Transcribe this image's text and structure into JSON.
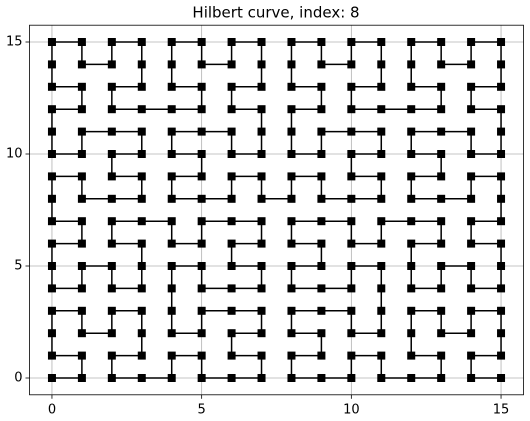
{
  "chart_data": {
    "type": "line",
    "title": "Hilbert curve, index: 8",
    "x": [
      0,
      1,
      1,
      0,
      0,
      0,
      1,
      1,
      2,
      2,
      3,
      3,
      3,
      2,
      2,
      3,
      4,
      4,
      5,
      5,
      6,
      7,
      7,
      6,
      6,
      7,
      7,
      6,
      5,
      5,
      4,
      4,
      4,
      4,
      5,
      5,
      6,
      7,
      7,
      6,
      6,
      7,
      7,
      6,
      5,
      5,
      4,
      4,
      3,
      2,
      2,
      3,
      3,
      3,
      2,
      2,
      1,
      1,
      0,
      0,
      0,
      1,
      1,
      0,
      0,
      0,
      1,
      1,
      2,
      3,
      3,
      2,
      2,
      3,
      3,
      2,
      1,
      1,
      0,
      0,
      0,
      1,
      1,
      0,
      0,
      0,
      1,
      1,
      2,
      2,
      3,
      3,
      3,
      2,
      2,
      3,
      4,
      5,
      5,
      4,
      4,
      4,
      5,
      5,
      6,
      6,
      7,
      7,
      7,
      6,
      6,
      7,
      7,
      7,
      6,
      6,
      5,
      4,
      4,
      5,
      5,
      4,
      4,
      5,
      6,
      6,
      7,
      7,
      8,
      8,
      9,
      9,
      10,
      11,
      11,
      10,
      10,
      11,
      11,
      10,
      9,
      9,
      8,
      8,
      8,
      9,
      9,
      8,
      8,
      8,
      9,
      9,
      10,
      10,
      11,
      11,
      11,
      10,
      10,
      11,
      12,
      13,
      13,
      12,
      12,
      12,
      13,
      13,
      14,
      14,
      15,
      15,
      15,
      14,
      14,
      15,
      15,
      15,
      14,
      14,
      13,
      12,
      12,
      13,
      13,
      12,
      12,
      13,
      14,
      14,
      15,
      15,
      15,
      14,
      14,
      15,
      15,
      15,
      14,
      14,
      13,
      13,
      12,
      12,
      12,
      13,
      13,
      12,
      11,
      11,
      10,
      10,
      9,
      8,
      8,
      9,
      9,
      8,
      8,
      9,
      10,
      10,
      11,
      11,
      11,
      11,
      10,
      10,
      9,
      8,
      8,
      9,
      9,
      8,
      8,
      9,
      10,
      10,
      11,
      11,
      12,
      13,
      13,
      12,
      12,
      12,
      13,
      13,
      14,
      14,
      15,
      15,
      15,
      14,
      14,
      15
    ],
    "y": [
      0,
      0,
      1,
      1,
      2,
      3,
      3,
      2,
      2,
      3,
      3,
      2,
      1,
      1,
      0,
      0,
      0,
      1,
      1,
      0,
      0,
      0,
      1,
      1,
      2,
      2,
      3,
      3,
      3,
      2,
      2,
      3,
      4,
      5,
      5,
      4,
      4,
      4,
      5,
      5,
      6,
      6,
      7,
      7,
      7,
      6,
      6,
      7,
      7,
      7,
      6,
      6,
      5,
      4,
      4,
      5,
      5,
      4,
      4,
      5,
      6,
      6,
      7,
      7,
      8,
      9,
      9,
      8,
      8,
      8,
      9,
      9,
      10,
      10,
      11,
      11,
      11,
      10,
      10,
      11,
      12,
      12,
      13,
      13,
      14,
      15,
      15,
      14,
      14,
      15,
      15,
      14,
      13,
      13,
      12,
      12,
      12,
      12,
      13,
      13,
      14,
      15,
      15,
      14,
      14,
      15,
      15,
      14,
      13,
      13,
      12,
      12,
      11,
      10,
      10,
      11,
      11,
      11,
      10,
      10,
      9,
      9,
      8,
      8,
      8,
      9,
      9,
      8,
      8,
      9,
      9,
      8,
      8,
      8,
      9,
      9,
      10,
      10,
      11,
      11,
      11,
      10,
      10,
      11,
      12,
      12,
      13,
      13,
      14,
      15,
      15,
      14,
      14,
      15,
      15,
      14,
      13,
      13,
      12,
      12,
      12,
      12,
      13,
      13,
      14,
      15,
      15,
      14,
      14,
      15,
      15,
      14,
      13,
      13,
      12,
      12,
      11,
      10,
      10,
      11,
      11,
      11,
      10,
      10,
      9,
      9,
      8,
      8,
      8,
      9,
      9,
      8,
      7,
      7,
      6,
      6,
      5,
      4,
      4,
      5,
      5,
      4,
      4,
      5,
      6,
      6,
      7,
      7,
      7,
      6,
      6,
      7,
      7,
      7,
      6,
      6,
      5,
      5,
      4,
      4,
      4,
      5,
      5,
      4,
      3,
      2,
      2,
      3,
      3,
      3,
      2,
      2,
      1,
      1,
      0,
      0,
      0,
      1,
      1,
      0,
      0,
      0,
      1,
      1,
      2,
      3,
      3,
      2,
      2,
      3,
      3,
      2,
      1,
      1,
      0,
      0
    ],
    "color": "#000000",
    "marker": "square",
    "xlim": [
      -0.75,
      15.75
    ],
    "ylim": [
      -0.75,
      15.75
    ],
    "xticks": [
      0,
      5,
      10,
      15
    ],
    "yticks": [
      0,
      5,
      10,
      15
    ],
    "grid": true
  }
}
